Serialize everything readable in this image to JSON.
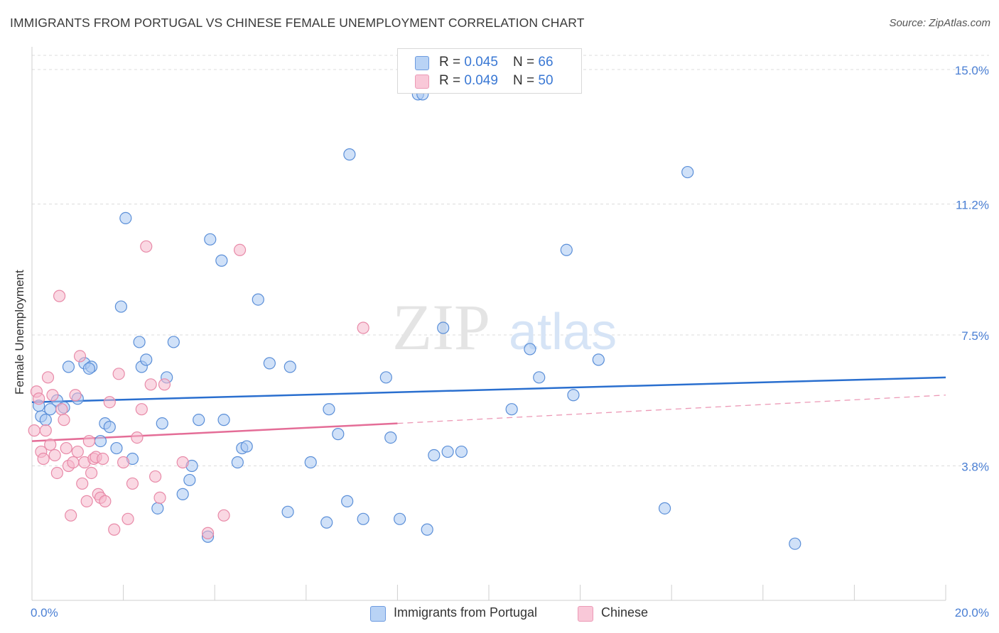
{
  "title": "IMMIGRANTS FROM PORTUGAL VS CHINESE FEMALE UNEMPLOYMENT CORRELATION CHART",
  "source": "Source: ZipAtlas.com",
  "watermark": {
    "zip": "ZIP",
    "atlas": "atlas"
  },
  "legend": {
    "series1": {
      "r_label": "R = ",
      "r_value": "0.045",
      "n_label": "N = ",
      "n_value": "66"
    },
    "series2": {
      "r_label": "R = ",
      "r_value": "0.049",
      "n_label": "N = ",
      "n_value": "50"
    }
  },
  "colors": {
    "blue_fill": "#a9c8f2",
    "blue_stroke": "#5b8fd8",
    "blue_line": "#2a6fcf",
    "pink_fill": "#f6b8cc",
    "pink_stroke": "#e88aa8",
    "pink_line": "#e46d97",
    "axis_text": "#4a7fd4",
    "grid": "#dcdcdc"
  },
  "chart_data": {
    "type": "scatter",
    "xlabel": "",
    "ylabel": "Female Unemployment",
    "xlim": [
      0,
      20
    ],
    "ylim": [
      0,
      15.4
    ],
    "x_tick_labels": {
      "min": "0.0%",
      "max": "20.0%"
    },
    "y_ticks": [
      3.8,
      7.5,
      11.2,
      15.0
    ],
    "y_tick_labels": [
      "3.8%",
      "7.5%",
      "11.2%",
      "15.0%"
    ],
    "grid": true,
    "series": [
      {
        "name": "Immigrants from Portugal",
        "color": "#a9c8f2",
        "trend": {
          "x": [
            0,
            20
          ],
          "y": [
            5.6,
            6.3
          ],
          "style": "solid"
        },
        "points": [
          [
            0.2,
            5.2
          ],
          [
            0.3,
            5.1
          ],
          [
            0.4,
            5.4
          ],
          [
            0.55,
            5.65
          ],
          [
            0.7,
            5.45
          ],
          [
            0.8,
            6.6
          ],
          [
            1.0,
            5.7
          ],
          [
            1.15,
            6.7
          ],
          [
            1.3,
            6.6
          ],
          [
            1.5,
            4.5
          ],
          [
            1.6,
            5.0
          ],
          [
            1.7,
            4.9
          ],
          [
            1.85,
            4.3
          ],
          [
            1.95,
            8.3
          ],
          [
            2.05,
            10.8
          ],
          [
            2.2,
            4.0
          ],
          [
            2.35,
            7.3
          ],
          [
            2.4,
            6.6
          ],
          [
            2.5,
            6.8
          ],
          [
            2.75,
            2.6
          ],
          [
            2.85,
            5.0
          ],
          [
            2.95,
            6.3
          ],
          [
            3.1,
            7.3
          ],
          [
            3.3,
            3.0
          ],
          [
            3.45,
            3.4
          ],
          [
            3.5,
            3.8
          ],
          [
            3.65,
            5.1
          ],
          [
            3.85,
            1.8
          ],
          [
            3.9,
            10.2
          ],
          [
            4.15,
            9.6
          ],
          [
            4.2,
            5.1
          ],
          [
            4.5,
            3.9
          ],
          [
            4.6,
            4.3
          ],
          [
            4.7,
            4.35
          ],
          [
            4.95,
            8.5
          ],
          [
            5.2,
            6.7
          ],
          [
            5.6,
            2.5
          ],
          [
            5.65,
            6.6
          ],
          [
            6.1,
            3.9
          ],
          [
            6.45,
            2.2
          ],
          [
            6.5,
            5.4
          ],
          [
            6.7,
            4.7
          ],
          [
            6.9,
            2.8
          ],
          [
            6.95,
            12.6
          ],
          [
            7.25,
            2.3
          ],
          [
            7.75,
            6.3
          ],
          [
            7.85,
            4.6
          ],
          [
            8.05,
            2.3
          ],
          [
            8.45,
            14.3
          ],
          [
            8.55,
            14.3
          ],
          [
            8.65,
            2.0
          ],
          [
            8.8,
            4.1
          ],
          [
            9.0,
            7.7
          ],
          [
            9.1,
            4.2
          ],
          [
            9.4,
            4.2
          ],
          [
            10.5,
            5.4
          ],
          [
            10.9,
            7.1
          ],
          [
            11.1,
            6.3
          ],
          [
            11.7,
            9.9
          ],
          [
            11.85,
            5.8
          ],
          [
            12.4,
            6.8
          ],
          [
            13.85,
            2.6
          ],
          [
            14.35,
            12.1
          ],
          [
            16.7,
            1.6
          ],
          [
            0.15,
            5.5
          ],
          [
            1.25,
            6.55
          ]
        ]
      },
      {
        "name": "Chinese",
        "color": "#f6b8cc",
        "trend": {
          "x": [
            0,
            8.0
          ],
          "y": [
            4.5,
            5.0
          ],
          "style": "solid",
          "dashed_extension": {
            "x": [
              8.0,
              20
            ],
            "y": [
              5.0,
              5.8
            ]
          }
        },
        "points": [
          [
            0.05,
            4.8
          ],
          [
            0.1,
            5.9
          ],
          [
            0.15,
            5.7
          ],
          [
            0.2,
            4.2
          ],
          [
            0.25,
            4.0
          ],
          [
            0.3,
            4.8
          ],
          [
            0.35,
            6.3
          ],
          [
            0.4,
            4.4
          ],
          [
            0.45,
            5.8
          ],
          [
            0.5,
            4.1
          ],
          [
            0.55,
            3.6
          ],
          [
            0.6,
            8.6
          ],
          [
            0.65,
            5.4
          ],
          [
            0.7,
            5.1
          ],
          [
            0.75,
            4.3
          ],
          [
            0.8,
            3.8
          ],
          [
            0.85,
            2.4
          ],
          [
            0.9,
            3.9
          ],
          [
            0.95,
            5.8
          ],
          [
            1.0,
            4.2
          ],
          [
            1.05,
            6.9
          ],
          [
            1.1,
            3.3
          ],
          [
            1.15,
            3.9
          ],
          [
            1.2,
            2.8
          ],
          [
            1.25,
            4.5
          ],
          [
            1.3,
            3.6
          ],
          [
            1.35,
            4.0
          ],
          [
            1.4,
            4.05
          ],
          [
            1.45,
            3.0
          ],
          [
            1.5,
            2.9
          ],
          [
            1.55,
            4.0
          ],
          [
            1.6,
            2.8
          ],
          [
            1.7,
            5.6
          ],
          [
            1.8,
            2.0
          ],
          [
            1.9,
            6.4
          ],
          [
            2.0,
            3.9
          ],
          [
            2.1,
            2.3
          ],
          [
            2.2,
            3.3
          ],
          [
            2.3,
            4.6
          ],
          [
            2.4,
            5.4
          ],
          [
            2.5,
            10.0
          ],
          [
            2.6,
            6.1
          ],
          [
            2.7,
            3.5
          ],
          [
            2.8,
            2.9
          ],
          [
            2.9,
            6.1
          ],
          [
            3.3,
            3.9
          ],
          [
            3.85,
            1.9
          ],
          [
            4.2,
            2.4
          ],
          [
            4.55,
            9.9
          ],
          [
            7.25,
            7.7
          ]
        ]
      }
    ]
  },
  "bottom_legend": {
    "item1": "Immigrants from Portugal",
    "item2": "Chinese"
  }
}
